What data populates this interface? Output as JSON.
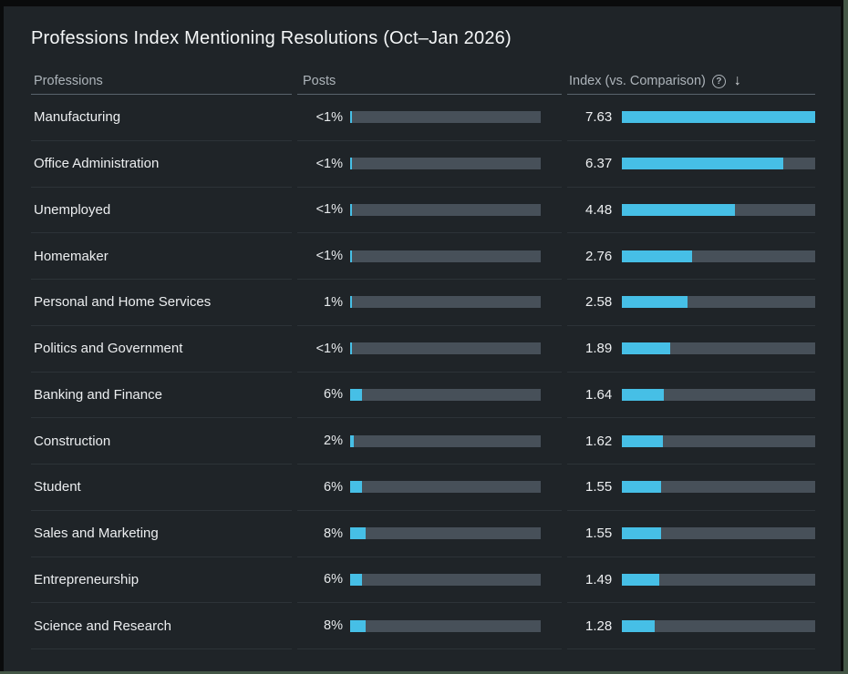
{
  "panel": {
    "title": "Professions Index Mentioning Resolutions (Oct–Jan 2026)",
    "accent_color": "#46bfe6",
    "track_color": "#475059",
    "background_color": "#1f2428",
    "border_color": "#445646"
  },
  "table": {
    "columns": {
      "professions": "Professions",
      "posts": "Posts",
      "index": "Index (vs. Comparison)"
    },
    "help_icon": "?",
    "sort_icon": "↓",
    "index_max": 7.63,
    "rows": [
      {
        "profession": "Manufacturing",
        "posts": "<1%",
        "posts_pct": 1,
        "index": "7.63",
        "index_value": 7.63
      },
      {
        "profession": "Office Administration",
        "posts": "<1%",
        "posts_pct": 1,
        "index": "6.37",
        "index_value": 6.37
      },
      {
        "profession": "Unemployed",
        "posts": "<1%",
        "posts_pct": 1,
        "index": "4.48",
        "index_value": 4.48
      },
      {
        "profession": "Homemaker",
        "posts": "<1%",
        "posts_pct": 1,
        "index": "2.76",
        "index_value": 2.76
      },
      {
        "profession": "Personal and Home Services",
        "posts": "1%",
        "posts_pct": 1,
        "index": "2.58",
        "index_value": 2.58
      },
      {
        "profession": "Politics and Government",
        "posts": "<1%",
        "posts_pct": 1,
        "index": "1.89",
        "index_value": 1.89
      },
      {
        "profession": "Banking and Finance",
        "posts": "6%",
        "posts_pct": 6,
        "index": "1.64",
        "index_value": 1.64
      },
      {
        "profession": "Construction",
        "posts": "2%",
        "posts_pct": 2,
        "index": "1.62",
        "index_value": 1.62
      },
      {
        "profession": "Student",
        "posts": "6%",
        "posts_pct": 6,
        "index": "1.55",
        "index_value": 1.55
      },
      {
        "profession": "Sales and Marketing",
        "posts": "8%",
        "posts_pct": 8,
        "index": "1.55",
        "index_value": 1.55
      },
      {
        "profession": "Entrepreneurship",
        "posts": "6%",
        "posts_pct": 6,
        "index": "1.49",
        "index_value": 1.49
      },
      {
        "profession": "Science and Research",
        "posts": "8%",
        "posts_pct": 8,
        "index": "1.28",
        "index_value": 1.28
      }
    ]
  },
  "chart_data": {
    "type": "bar",
    "orientation": "horizontal",
    "title": "Professions Index Mentioning Resolutions (Oct–Jan 2026)",
    "categories": [
      "Manufacturing",
      "Office Administration",
      "Unemployed",
      "Homemaker",
      "Personal and Home Services",
      "Politics and Government",
      "Banking and Finance",
      "Construction",
      "Student",
      "Sales and Marketing",
      "Entrepreneurship",
      "Science and Research"
    ],
    "series": [
      {
        "name": "Posts",
        "values": [
          "<1%",
          "<1%",
          "<1%",
          "<1%",
          "1%",
          "<1%",
          "6%",
          "2%",
          "6%",
          "8%",
          "6%",
          "8%"
        ]
      },
      {
        "name": "Index (vs. Comparison)",
        "values": [
          7.63,
          6.37,
          4.48,
          2.76,
          2.58,
          1.89,
          1.64,
          1.62,
          1.55,
          1.55,
          1.49,
          1.28
        ]
      }
    ],
    "xlabel": "",
    "ylabel": "",
    "xlim": [
      0,
      7.63
    ],
    "grid": false,
    "legend_position": "none",
    "bar_color": "#46bfe6",
    "track_color": "#475059",
    "sort": "descending by index"
  }
}
